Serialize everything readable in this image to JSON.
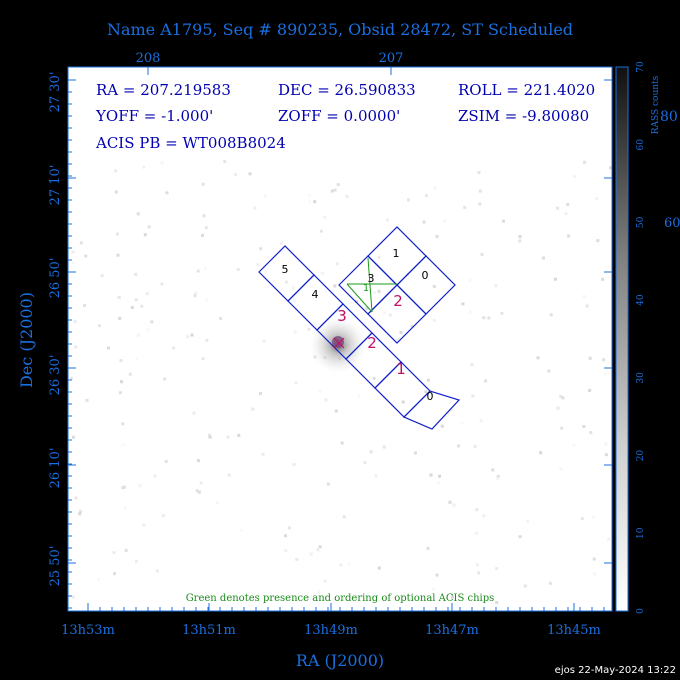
{
  "title": "Name A1795, Seq # 890235, Obsid 28472, ST Scheduled",
  "top_axis": {
    "ticks": [
      "208",
      "207"
    ]
  },
  "info": {
    "ra": "RA = 207.219583",
    "dec": "DEC = 26.590833",
    "roll": "ROLL = 221.4020",
    "yoff": "YOFF =  -1.000'",
    "zoff": "ZOFF =  0.0000'",
    "zsim": "ZSIM = -9.80080",
    "acis_pb": "ACIS PB = WT008B8024"
  },
  "note": "Green denotes presence and ordering of optional ACIS chips",
  "x_axis": {
    "label": "RA (J2000)",
    "ticks": [
      "13h53m",
      "13h51m",
      "13h49m",
      "13h47m",
      "13h45m"
    ]
  },
  "y_axis": {
    "label": "Dec (J2000)",
    "ticks": [
      "27 30'",
      "27 10'",
      "26 50'",
      "26 30'",
      "26 10'",
      "25 50'"
    ]
  },
  "colorbar": {
    "label": "RASS counts",
    "ticks": [
      "0",
      "10",
      "20",
      "30",
      "40",
      "50",
      "60",
      "70"
    ],
    "overflow_labels": [
      "80",
      "60"
    ]
  },
  "chips": {
    "s_array": [
      "5",
      "4",
      "3",
      "2",
      "1",
      "0"
    ],
    "i_array": [
      "1",
      "0",
      "3",
      "2"
    ],
    "optional_order": [
      "1"
    ]
  },
  "footer": "ejos 22-May-2024 13:22",
  "colors": {
    "axis": "#1a6fe0",
    "chip_outline": "#1020c8",
    "text": "#0000b0",
    "optional": "#1a9a1a",
    "highlight": "#c0106a"
  }
}
